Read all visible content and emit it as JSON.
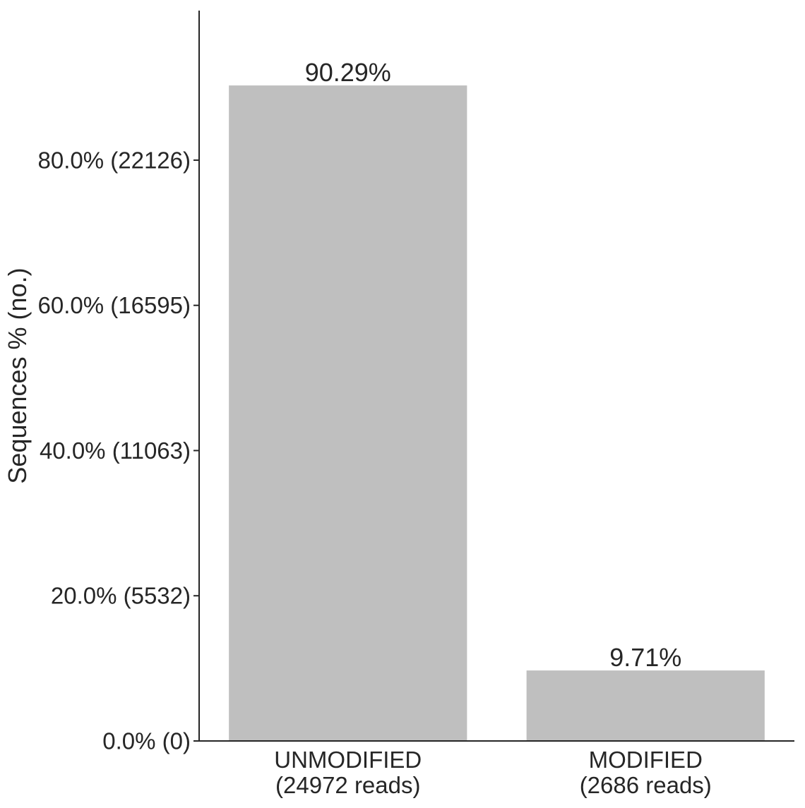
{
  "chart_data": {
    "type": "bar",
    "title": "",
    "xlabel": "",
    "ylabel": "Sequences % (no.)",
    "ylim": [
      0,
      100.6
    ],
    "grid": false,
    "legend": "none",
    "bar_color": "#bfbfbf",
    "axis_color": "#262626",
    "categories": [
      {
        "label": "UNMODIFIED",
        "sublabel": "(24972 reads)"
      },
      {
        "label": "MODIFIED",
        "sublabel": "(2686 reads)"
      }
    ],
    "values": [
      90.29,
      9.71
    ],
    "value_labels": [
      "90.29%",
      "9.71%"
    ],
    "y_ticks": [
      {
        "value": 0,
        "label": "0.0% (0)"
      },
      {
        "value": 20,
        "label": "20.0% (5532)"
      },
      {
        "value": 40,
        "label": "40.0% (11063)"
      },
      {
        "value": 60,
        "label": "60.0% (16595)"
      },
      {
        "value": 80,
        "label": "80.0% (22126)"
      }
    ]
  }
}
